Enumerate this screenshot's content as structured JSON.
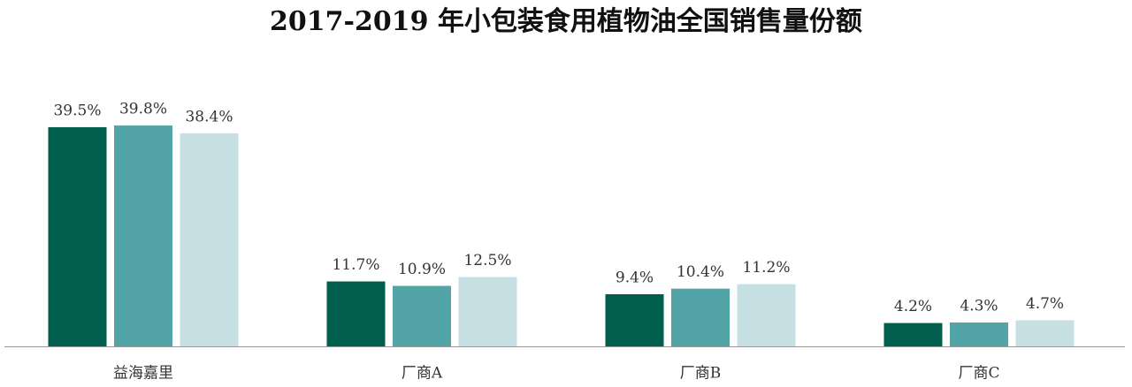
{
  "chart_data": {
    "type": "bar",
    "title": "2017-2019 年小包装食用植物油全国销售量份额",
    "categories": [
      "益海嘉里",
      "厂商A",
      "厂商B",
      "厂商C"
    ],
    "series": [
      {
        "color": "#005e4c",
        "values": [
          39.5,
          11.7,
          9.4,
          4.2
        ],
        "value_labels": [
          "39.5%",
          "11.7%",
          "9.4%",
          "4.2%"
        ]
      },
      {
        "color": "#52a4a6",
        "values": [
          39.8,
          10.9,
          10.4,
          4.3
        ],
        "value_labels": [
          "39.8%",
          "10.9%",
          "10.4%",
          "4.3%"
        ]
      },
      {
        "color": "#c6dfe3",
        "values": [
          38.4,
          12.5,
          11.2,
          4.7
        ],
        "value_labels": [
          "38.4%",
          "12.5%",
          "11.2%",
          "4.7%"
        ]
      }
    ]
  }
}
